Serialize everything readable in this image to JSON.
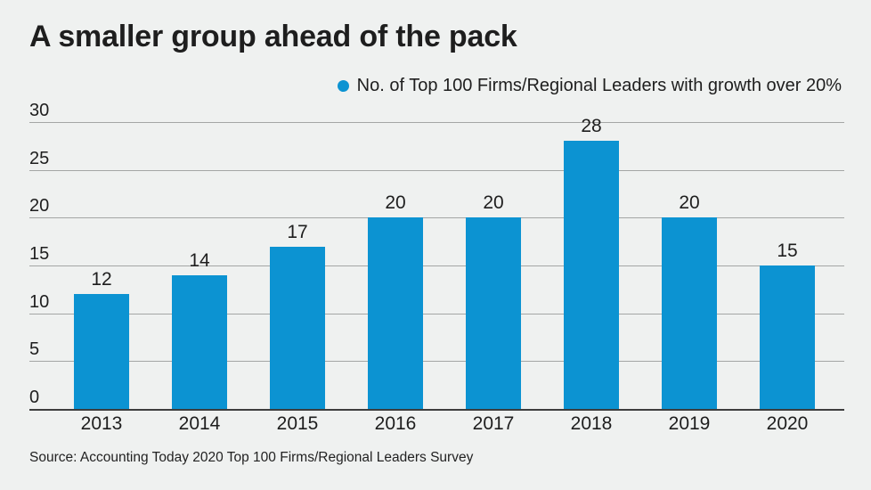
{
  "title": "A smaller group ahead of the pack",
  "legend": {
    "label": "No. of Top 100 Firms/Regional Leaders with growth over 20%"
  },
  "source": "Source: Accounting Today 2020 Top 100 Firms/Regional Leaders Survey",
  "colors": {
    "background": "#eff1f0",
    "bar": "#0c93d2",
    "gridline": "#a4a6a5",
    "baseline": "#3d3d3d",
    "text": "#1e1e1e"
  },
  "chart_data": {
    "type": "bar",
    "title": "A smaller group ahead of the pack",
    "categories": [
      "2013",
      "2014",
      "2015",
      "2016",
      "2017",
      "2018",
      "2019",
      "2020"
    ],
    "values": [
      12,
      14,
      17,
      20,
      20,
      28,
      20,
      15
    ],
    "series_name": "No. of Top 100 Firms/Regional Leaders with growth over 20%",
    "xlabel": "",
    "ylabel": "",
    "ylim": [
      0,
      30
    ],
    "yticks": [
      0,
      5,
      10,
      15,
      20,
      25,
      30
    ],
    "grid": true,
    "bar_labels": true,
    "legend_position": "top-right"
  }
}
